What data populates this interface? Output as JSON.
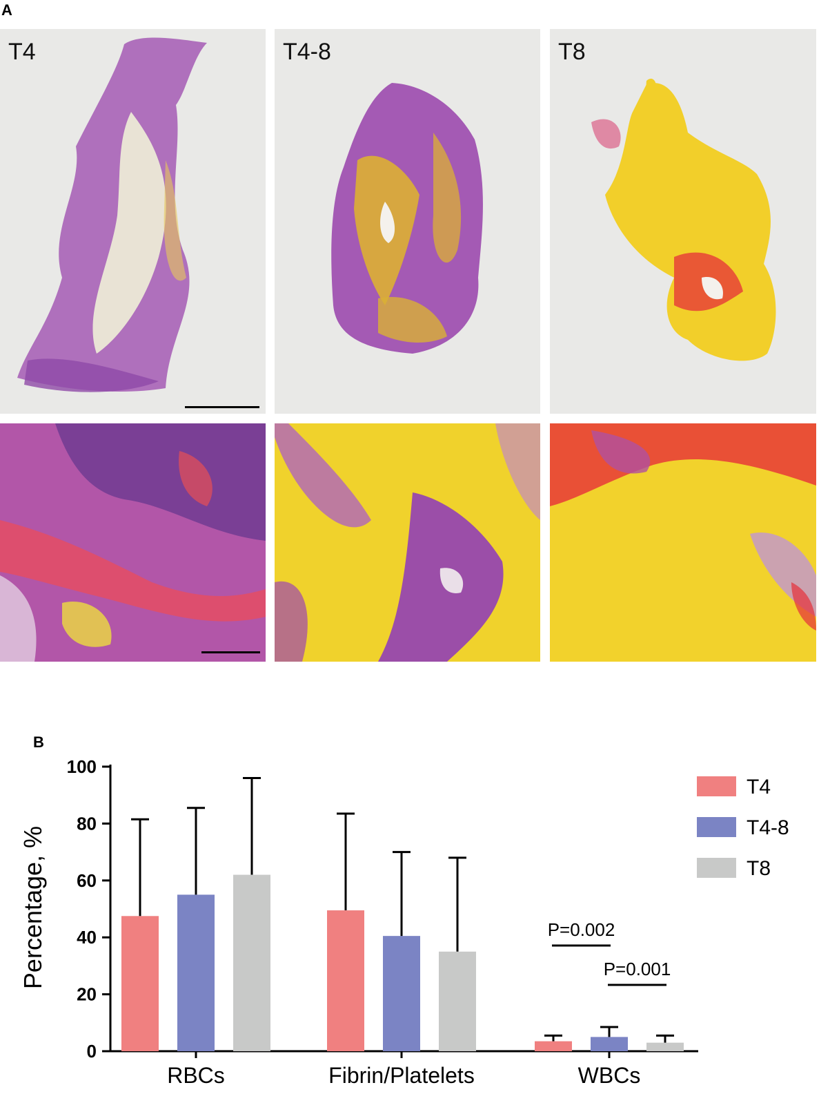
{
  "panel_a": {
    "letter": "A",
    "overview_labels": [
      "T4",
      "T4-8",
      "T8"
    ]
  },
  "panel_b": {
    "letter": "B"
  },
  "colors": {
    "T4": "#f08080",
    "T4-8": "#7b84c4",
    "T8": "#c8c9c8",
    "overview_bg": "#e9e9e7",
    "stain_purple": "#a45ab4",
    "stain_yellow": "#f2cf2a",
    "stain_red": "#e6303a"
  },
  "chart_data": {
    "type": "bar",
    "categories": [
      "RBCs",
      "Fibrin/Platelets",
      "WBCs"
    ],
    "series": [
      {
        "name": "T4",
        "values": [
          47.5,
          49.5,
          3.5
        ],
        "error": [
          34,
          34,
          2
        ]
      },
      {
        "name": "T4-8",
        "values": [
          55,
          40.5,
          5
        ],
        "error": [
          30.5,
          29.5,
          3.5
        ]
      },
      {
        "name": "T8",
        "values": [
          62,
          35,
          3
        ],
        "error": [
          34,
          33,
          2.5
        ]
      }
    ],
    "ylabel": "Percentage, %",
    "ylim": [
      0,
      100
    ],
    "yticks": [
      0,
      20,
      40,
      60,
      80,
      100
    ],
    "legend": "top-right",
    "grid": false,
    "annotations": [
      {
        "text": "P=0.002",
        "category": "WBCs",
        "from": "T4",
        "to": "T4-8"
      },
      {
        "text": "P=0.001",
        "category": "WBCs",
        "from": "T4-8",
        "to": "T8"
      }
    ]
  }
}
